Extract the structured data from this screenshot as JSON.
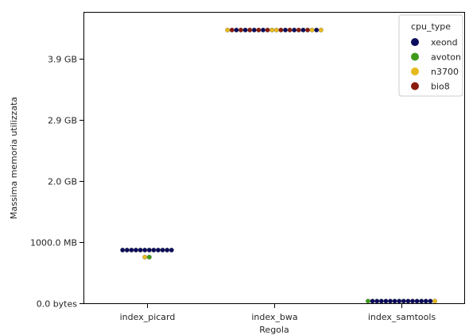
{
  "chart_data": {
    "type": "scatter",
    "subtype": "swarm",
    "xlabel": "Regola",
    "ylabel": "Massima memoria utilizzata",
    "categories": [
      "index_picard",
      "index_bwa",
      "index_samtools"
    ],
    "y_ticks": [
      {
        "value": 0,
        "label": "0.0 bytes"
      },
      {
        "value": 1000,
        "label": "1000.0 MB"
      },
      {
        "value": 2000,
        "label": "2.0 GB"
      },
      {
        "value": 3000,
        "label": "2.9 GB"
      },
      {
        "value": 4000,
        "label": "3.9 GB"
      }
    ],
    "ylim": [
      0,
      4700
    ],
    "grid": false,
    "legend": {
      "title": "cpu_type",
      "placement": "top-right",
      "entries": [
        {
          "name": "xeond",
          "color": "#0b0b5c"
        },
        {
          "name": "avoton",
          "color": "#3f9a1a"
        },
        {
          "name": "n3700",
          "color": "#e6b91e"
        },
        {
          "name": "bio8",
          "color": "#8b1a0e"
        }
      ]
    },
    "points": [
      {
        "category": "index_picard",
        "cpu_type": "xeond",
        "y": 870,
        "n": 12
      },
      {
        "category": "index_picard",
        "cpu_type": "n3700",
        "y": 755,
        "n": 1
      },
      {
        "category": "index_picard",
        "cpu_type": "avoton",
        "y": 755,
        "n": 1
      },
      {
        "category": "index_bwa",
        "cpu_type": "n3700",
        "y": 4470,
        "n": 1
      },
      {
        "category": "index_bwa",
        "cpu_type": "bio8",
        "y": 4470,
        "n": 1
      },
      {
        "category": "index_bwa",
        "cpu_type": "xeond",
        "y": 4470,
        "n": 1
      },
      {
        "category": "index_bwa",
        "cpu_type": "bio8",
        "y": 4470,
        "n": 1
      },
      {
        "category": "index_bwa",
        "cpu_type": "xeond",
        "y": 4470,
        "n": 1
      },
      {
        "category": "index_bwa",
        "cpu_type": "bio8",
        "y": 4470,
        "n": 1
      },
      {
        "category": "index_bwa",
        "cpu_type": "xeond",
        "y": 4470,
        "n": 1
      },
      {
        "category": "index_bwa",
        "cpu_type": "bio8",
        "y": 4470,
        "n": 1
      },
      {
        "category": "index_bwa",
        "cpu_type": "xeond",
        "y": 4470,
        "n": 1
      },
      {
        "category": "index_bwa",
        "cpu_type": "bio8",
        "y": 4470,
        "n": 1
      },
      {
        "category": "index_bwa",
        "cpu_type": "n3700",
        "y": 4470,
        "n": 1
      },
      {
        "category": "index_bwa",
        "cpu_type": "n3700",
        "y": 4470,
        "n": 1
      },
      {
        "category": "index_bwa",
        "cpu_type": "bio8",
        "y": 4470,
        "n": 1
      },
      {
        "category": "index_bwa",
        "cpu_type": "xeond",
        "y": 4470,
        "n": 1
      },
      {
        "category": "index_bwa",
        "cpu_type": "bio8",
        "y": 4470,
        "n": 1
      },
      {
        "category": "index_bwa",
        "cpu_type": "xeond",
        "y": 4470,
        "n": 1
      },
      {
        "category": "index_bwa",
        "cpu_type": "bio8",
        "y": 4470,
        "n": 1
      },
      {
        "category": "index_bwa",
        "cpu_type": "xeond",
        "y": 4470,
        "n": 1
      },
      {
        "category": "index_bwa",
        "cpu_type": "bio8",
        "y": 4470,
        "n": 1
      },
      {
        "category": "index_bwa",
        "cpu_type": "n3700",
        "y": 4470,
        "n": 1
      },
      {
        "category": "index_bwa",
        "cpu_type": "xeond",
        "y": 4470,
        "n": 1
      },
      {
        "category": "index_bwa",
        "cpu_type": "n3700",
        "y": 4470,
        "n": 1
      },
      {
        "category": "index_samtools",
        "cpu_type": "avoton",
        "y": 35,
        "n": 1
      },
      {
        "category": "index_samtools",
        "cpu_type": "xeond",
        "y": 35,
        "n": 14
      },
      {
        "category": "index_samtools",
        "cpu_type": "n3700",
        "y": 35,
        "n": 1
      }
    ]
  }
}
